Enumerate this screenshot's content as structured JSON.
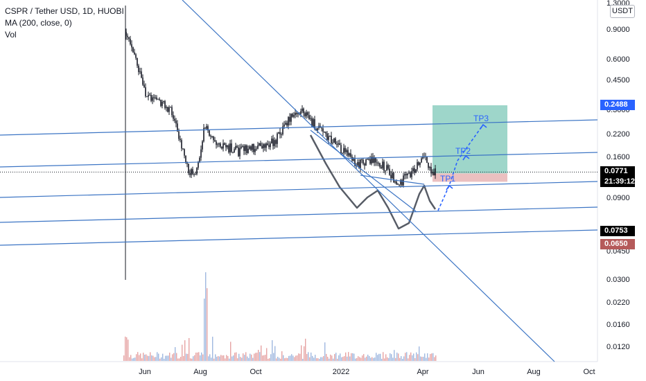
{
  "header": {
    "symbol_line": "CSPR / Tether USD, 1D, HUOBI",
    "indicator_line": "MA (200, close, 0)",
    "volume_line": "Vol"
  },
  "currency_button": "USDT",
  "price_axis": {
    "top_partial": "1.3000",
    "ticks": [
      "0.9000",
      "0.6000",
      "0.4500",
      "0.3000",
      "0.2200",
      "0.1600",
      "0.1200",
      "0.0900",
      "0.0450",
      "0.0300",
      "0.0220",
      "0.0160",
      "0.0120"
    ]
  },
  "price_tags": {
    "target": {
      "value": "0.2488",
      "bg": "#2962ff",
      "color": "#ffffff"
    },
    "last": {
      "value": "0.0771",
      "bg": "#000000",
      "color": "#ffffff"
    },
    "countdown": {
      "value": "21:39:12",
      "bg": "#000000",
      "color": "#ffffff"
    },
    "entry": {
      "value": "0.0753",
      "bg": "#000000",
      "color": "#ffffff"
    },
    "stop": {
      "value": "0.0650",
      "bg": "#b55a5a",
      "color": "#ffffff"
    }
  },
  "time_axis": [
    "Jun",
    "Aug",
    "Oct",
    "2022",
    "Apr",
    "Jun",
    "Aug",
    "Oct"
  ],
  "drawings": {
    "targets": [
      "TP1",
      "TP2",
      "TP3"
    ],
    "target_color": "#2962ff",
    "profit_zone_color": "#7ec8b8",
    "loss_zone_color": "#e3a5a5",
    "trendline_color": "#3b74c4"
  },
  "chart_data": {
    "type": "candlestick",
    "title": "CSPR / Tether USD, 1D, HUOBI",
    "yscale": "log",
    "ylim": [
      0.0095,
      1.3
    ],
    "x": [
      "2021-05-12",
      "2021-05-20",
      "2021-06-01",
      "2021-06-15",
      "2021-07-01",
      "2021-07-10",
      "2021-07-20",
      "2021-07-28",
      "2021-08-05",
      "2021-08-20",
      "2021-09-10",
      "2021-10-01",
      "2021-10-20",
      "2021-11-05",
      "2021-11-20",
      "2021-12-05",
      "2021-12-20",
      "2022-01-05",
      "2022-01-20",
      "2022-02-05",
      "2022-02-20",
      "2022-03-05",
      "2022-03-20",
      "2022-04-01",
      "2022-04-12"
    ],
    "close": [
      0.9,
      0.65,
      0.3,
      0.28,
      0.22,
      0.13,
      0.075,
      0.08,
      0.17,
      0.13,
      0.11,
      0.12,
      0.13,
      0.19,
      0.23,
      0.17,
      0.14,
      0.11,
      0.088,
      0.098,
      0.083,
      0.062,
      0.077,
      0.1,
      0.0771
    ],
    "ma_label": "MA (200, close, 0)",
    "last_price": 0.0771,
    "targets": {
      "TP1": 0.115,
      "TP2": 0.16,
      "TP3": 0.2488
    },
    "entry": 0.0753,
    "stop": 0.065
  }
}
